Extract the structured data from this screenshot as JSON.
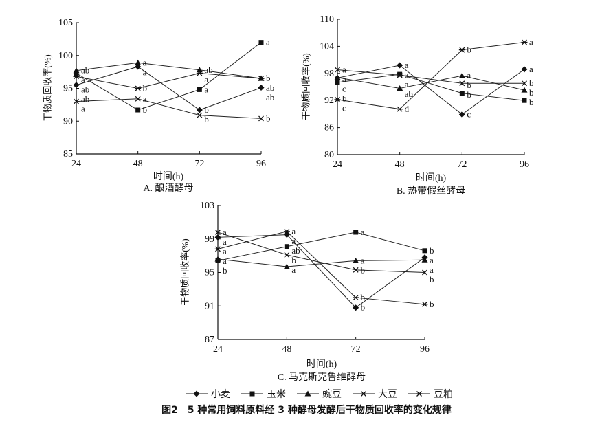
{
  "legend": [
    "小麦",
    "玉米",
    "豌豆",
    "大豆",
    "豆粕"
  ],
  "markers": [
    "diamond",
    "square",
    "triangle",
    "x",
    "asterisk"
  ],
  "caption": "图2　5 种常用饲料原料经 3 种酵母发酵后干物质回收率的变化规律",
  "chart_data": [
    {
      "type": "line",
      "title": "A. 酿酒酵母",
      "xlabel": "时间(h)",
      "ylabel": "干物质回收率(%)",
      "x": [
        24,
        48,
        72,
        96
      ],
      "ylim": [
        85,
        105
      ],
      "yticks": [
        85,
        90,
        95,
        100,
        105
      ],
      "series": [
        {
          "name": "小麦",
          "values": [
            95.5,
            98.3,
            91.7,
            95.1
          ],
          "letters": [
            "ab",
            "a",
            "b",
            "ab"
          ]
        },
        {
          "name": "玉米",
          "values": [
            97.3,
            91.7,
            94.8,
            102.0
          ],
          "letters": [
            "a",
            "b",
            "a",
            "a"
          ]
        },
        {
          "name": "豌豆",
          "values": [
            97.7,
            98.9,
            97.8,
            96.5
          ],
          "letters": [
            "ab",
            "a",
            "ab",
            "b"
          ]
        },
        {
          "name": "大豆",
          "values": [
            93.0,
            93.4,
            90.9,
            90.4
          ],
          "letters": [
            "a",
            "a",
            "b",
            "b"
          ]
        },
        {
          "name": "豆粕",
          "values": [
            96.8,
            95.0,
            97.3,
            96.5
          ],
          "letters": [
            "ab",
            "b",
            "a",
            "ab"
          ]
        }
      ]
    },
    {
      "type": "line",
      "title": "B. 热带假丝酵母",
      "xlabel": "时间(h)",
      "ylabel": "干物质回收率(%)",
      "x": [
        24,
        48,
        72,
        96
      ],
      "ylim": [
        80,
        110
      ],
      "yticks": [
        80,
        86,
        92,
        98,
        104,
        110
      ],
      "series": [
        {
          "name": "小麦",
          "values": [
            97.0,
            99.8,
            88.9,
            98.9
          ],
          "letters": [
            "c",
            "a",
            "c",
            "a"
          ]
        },
        {
          "name": "玉米",
          "values": [
            96.0,
            97.8,
            93.6,
            92.0
          ],
          "letters": [
            "b",
            "a",
            "b",
            "b"
          ]
        },
        {
          "name": "豌豆",
          "values": [
            97.1,
            94.7,
            97.5,
            94.3
          ],
          "letters": [
            "a",
            "ab",
            "a",
            "b"
          ]
        },
        {
          "name": "大豆",
          "values": [
            98.8,
            97.6,
            95.8,
            95.8
          ],
          "letters": [
            "a",
            "a",
            "b",
            "b"
          ]
        },
        {
          "name": "豆粕",
          "values": [
            92.2,
            90.1,
            103.2,
            104.9
          ],
          "letters": [
            "c",
            "d",
            "b",
            "a"
          ]
        }
      ]
    },
    {
      "type": "line",
      "title": "C. 马克斯克鲁维酵母",
      "xlabel": "时间(h)",
      "ylabel": "干物质回收率(%)",
      "x": [
        24,
        48,
        72,
        96
      ],
      "ylim": [
        87,
        103
      ],
      "yticks": [
        87,
        91,
        95,
        99,
        103
      ],
      "series": [
        {
          "name": "小麦",
          "values": [
            99.2,
            99.5,
            90.8,
            96.8
          ],
          "letters": [
            "a",
            "a",
            "b",
            "a"
          ]
        },
        {
          "name": "玉米",
          "values": [
            96.4,
            98.1,
            99.8,
            97.6
          ],
          "letters": [
            "b",
            "ab",
            "a",
            "b"
          ]
        },
        {
          "name": "豌豆",
          "values": [
            96.6,
            95.7,
            96.4,
            96.5
          ],
          "letters": [
            "a",
            "a",
            "a",
            "a"
          ]
        },
        {
          "name": "大豆",
          "values": [
            99.8,
            97.1,
            95.3,
            95.0
          ],
          "letters": [
            "a",
            "b",
            "b",
            "b"
          ]
        },
        {
          "name": "豆粕",
          "values": [
            97.8,
            99.9,
            92.0,
            91.2
          ],
          "letters": [
            "a",
            "a",
            "b",
            "b"
          ]
        }
      ]
    }
  ]
}
